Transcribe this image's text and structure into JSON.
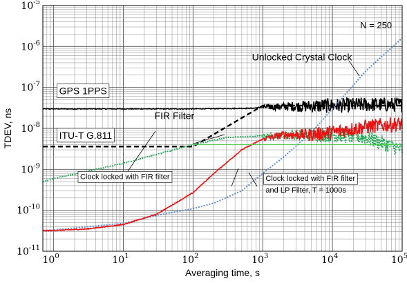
{
  "chart_data": {
    "type": "line",
    "title": "",
    "xlabel": "Averaging time, s",
    "ylabel": "TDEV, ns",
    "xscale": "log",
    "yscale": "log",
    "xlim": [
      0.7,
      100000
    ],
    "ylim": [
      1e-11,
      1e-05
    ],
    "grid": true,
    "x_ticks": [
      {
        "value": 1,
        "base": "10",
        "exp": "0"
      },
      {
        "value": 10,
        "base": "10",
        "exp": "1"
      },
      {
        "value": 100,
        "base": "10",
        "exp": "2"
      },
      {
        "value": 1000,
        "base": "10",
        "exp": "3"
      },
      {
        "value": 10000,
        "base": "10",
        "exp": "4"
      },
      {
        "value": 100000,
        "base": "10",
        "exp": "5"
      }
    ],
    "y_ticks": [
      {
        "value": 1e-05,
        "base": "10",
        "exp": "-5"
      },
      {
        "value": 1e-06,
        "base": "10",
        "exp": "-6"
      },
      {
        "value": 1e-07,
        "base": "10",
        "exp": "-7"
      },
      {
        "value": 1e-08,
        "base": "10",
        "exp": "-8"
      },
      {
        "value": 1e-09,
        "base": "10",
        "exp": "-9"
      },
      {
        "value": 1e-10,
        "base": "10",
        "exp": "-10"
      },
      {
        "value": 1e-11,
        "base": "10",
        "exp": "-11"
      }
    ],
    "series": [
      {
        "name": "GPS 1PPS",
        "color": "#000000",
        "style": "noisy",
        "x": [
          0.7,
          10,
          100,
          700,
          1000,
          2000,
          5000,
          10000,
          30000,
          100000
        ],
        "y": [
          3e-08,
          3e-08,
          3e-08,
          3.1e-08,
          3.3e-08,
          3.4e-08,
          3.5e-08,
          3.6e-08,
          3.8e-08,
          3.8e-08
        ]
      },
      {
        "name": "ITU-T G.811",
        "color": "#000000",
        "style": "dashed",
        "x": [
          0.7,
          100,
          1000,
          100000
        ],
        "y": [
          3.6e-09,
          3.6e-09,
          3.6e-08,
          3.6e-08
        ]
      },
      {
        "name": "Unlocked Crystal Clock",
        "color": "#5b8fd0",
        "style": "dotted",
        "x": [
          0.7,
          1,
          10,
          30,
          100,
          200,
          500,
          1000,
          2000,
          5000,
          10000,
          30000,
          100000
        ],
        "y": [
          3.2e-11,
          3.3e-11,
          4.8e-11,
          7.5e-11,
          1.1e-10,
          1.5e-10,
          3e-10,
          8e-10,
          2e-09,
          8e-09,
          3e-08,
          2.5e-07,
          1.6e-06
        ]
      },
      {
        "name": "Clock locked with FIR filter",
        "color": "#22aa55",
        "style": "dotted-noisy",
        "x": [
          0.7,
          1,
          10,
          100,
          300,
          1000,
          3000,
          10000,
          30000,
          100000
        ],
        "y": [
          5e-10,
          6e-10,
          1.4e-09,
          4e-09,
          6e-09,
          6.5e-09,
          7e-09,
          7e-09,
          6e-09,
          3e-09
        ]
      },
      {
        "name": "Clock locked with FIR filter and LP Filter, T = 1000s",
        "color": "#ee1111",
        "style": "noisy",
        "x": [
          0.7,
          1,
          3,
          10,
          30,
          100,
          200,
          500,
          1000,
          2000,
          5000,
          10000,
          30000,
          100000
        ],
        "y": [
          3.2e-11,
          3.2e-11,
          3.5e-11,
          4.5e-11,
          8e-11,
          2.7e-10,
          8e-10,
          3e-09,
          5.5e-09,
          7e-09,
          7e-09,
          8e-09,
          1.1e-08,
          1.3e-08
        ]
      },
      {
        "name": "FIR Filter",
        "color": "#44cc44",
        "style": "solid",
        "x": [
          100,
          100000
        ],
        "y": [
          4e-09,
          4e-09
        ]
      }
    ],
    "annotations": [
      {
        "text": "N = 250",
        "x": 25000,
        "y": 2.8e-06,
        "box": false,
        "color": "#000000"
      },
      {
        "text": "Unlocked Crystal Clock",
        "x": 700,
        "y": 4.6e-07,
        "box": false,
        "color": "#000000"
      },
      {
        "text": "GPS 1PPS",
        "x": 1.2,
        "y": 6.8e-08,
        "box": true,
        "color": "#000000"
      },
      {
        "text": "FIR Filter",
        "x": 28,
        "y": 1.7e-08,
        "box": false,
        "color": "#000000"
      },
      {
        "text": "ITU-T G.811",
        "x": 1.2,
        "y": 5.6e-09,
        "box": true,
        "color": "#000000"
      },
      {
        "text": "Clock locked with FIR filter",
        "x": 2.4,
        "y": 5.8e-10,
        "box": true,
        "color": "#000000"
      },
      {
        "text": "Clock locked with FIR filter",
        "x": 1100,
        "y": 5.2e-10,
        "box": true,
        "color": "#000000"
      },
      {
        "text": "and LP Filter, T = 1000s",
        "x": 1100,
        "y": 2.7e-10,
        "box": false,
        "color": "#000000"
      }
    ]
  }
}
